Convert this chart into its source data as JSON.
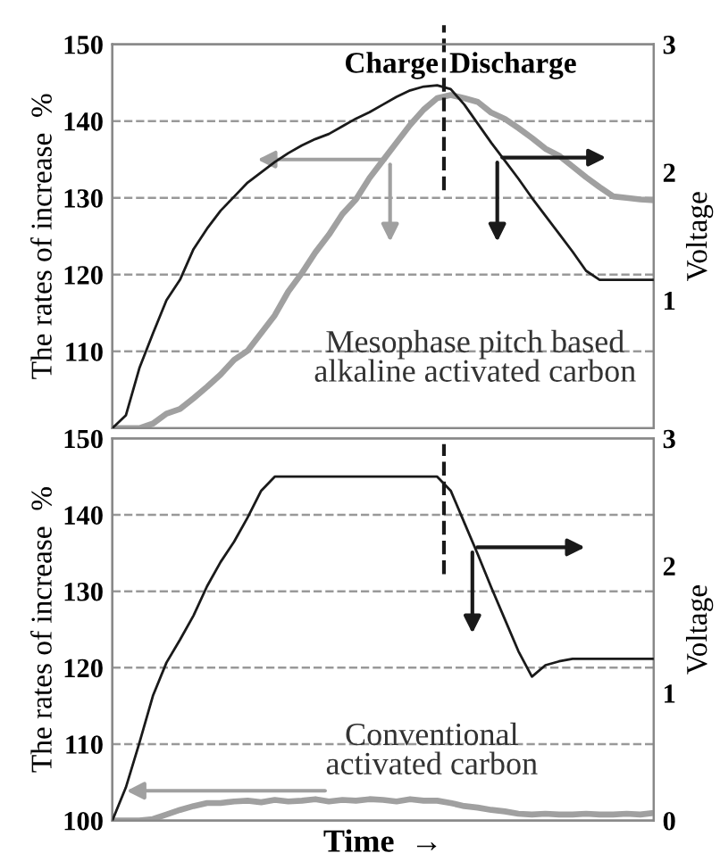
{
  "chart_data": [
    {
      "type": "line",
      "categories": [
        null,
        null,
        null,
        null,
        null,
        null,
        null,
        null,
        null,
        null,
        null,
        null,
        null,
        null,
        null,
        null,
        null,
        null,
        null,
        null,
        null,
        null,
        null,
        null,
        null,
        null,
        null,
        null,
        null,
        null,
        null,
        null,
        null,
        null,
        null,
        null,
        null,
        null,
        null,
        null,
        null
      ],
      "ylabel": "The rates of increase  %",
      "y2label": "Voltage",
      "ylim": [
        100,
        150
      ],
      "yticks": [
        {
          "value": 100,
          "label": null
        },
        110,
        120,
        130,
        140,
        150
      ],
      "y2lim": [
        0,
        3
      ],
      "y2ticks": [
        {
          "value": 0,
          "label": null
        },
        1,
        2,
        3
      ],
      "grid": "y",
      "line_style": "solid",
      "annotations": [
        "Charge",
        "Discharge",
        "Mesophase pitch based\nalkaline activated carbon"
      ],
      "series": [
        {
          "color": "#a0a0a0",
          "values": [
            100,
            100,
            100,
            100.6,
            101.9,
            102.5,
            103.9,
            105.4,
            107.0,
            108.9,
            110.1,
            112.4,
            114.7,
            117.8,
            120.2,
            122.9,
            125.2,
            127.9,
            129.8,
            132.6,
            134.9,
            137.2,
            139.5,
            141.5,
            143.0,
            143.4,
            143.0,
            142.5,
            141.1,
            140.3,
            139.1,
            137.8,
            136.4,
            135.5,
            134.1,
            132.7,
            131.4,
            130.2,
            130.0,
            129.8,
            129.7
          ]
        },
        {
          "color": "#1a1a1a",
          "axis": "y2",
          "values": [
            0,
            0.1,
            0.47,
            0.74,
            1.0,
            1.16,
            1.4,
            1.56,
            1.7,
            1.81,
            1.92,
            2.0,
            2.08,
            2.15,
            2.21,
            2.26,
            2.3,
            2.36,
            2.42,
            2.47,
            2.53,
            2.59,
            2.64,
            2.67,
            2.68,
            2.65,
            2.53,
            2.38,
            2.23,
            2.09,
            1.95,
            1.8,
            1.66,
            1.52,
            1.38,
            1.23,
            1.16,
            1.16,
            1.16,
            1.16,
            1.16
          ]
        }
      ]
    },
    {
      "type": "line",
      "categories": [
        null,
        null,
        null,
        null,
        null,
        null,
        null,
        null,
        null,
        null,
        null,
        null,
        null,
        null,
        null,
        null,
        null,
        null,
        null,
        null,
        null,
        null,
        null,
        null,
        null,
        null,
        null,
        null,
        null,
        null,
        null,
        null,
        null,
        null,
        null,
        null,
        null,
        null,
        null,
        null,
        null
      ],
      "xlabel": "Time  →",
      "ylabel": "The rates of increase  %",
      "y2label": "Voltage",
      "ylim": [
        100,
        150
      ],
      "yticks": [
        100,
        110,
        120,
        130,
        140,
        150
      ],
      "y2lim": [
        0,
        3
      ],
      "y2ticks": [
        0,
        1,
        2,
        3
      ],
      "grid": "y",
      "line_style": "solid",
      "annotations": [
        "Conventional\nactivated carbon"
      ],
      "series": [
        {
          "color": "#a0a0a0",
          "values": [
            100,
            100,
            100,
            100.2,
            100.8,
            101.4,
            101.9,
            102.3,
            102.3,
            102.5,
            102.6,
            102.4,
            102.7,
            102.5,
            102.6,
            102.8,
            102.5,
            102.7,
            102.6,
            102.8,
            102.7,
            102.5,
            102.8,
            102.6,
            102.6,
            102.3,
            101.9,
            101.7,
            101.4,
            101.2,
            100.9,
            100.8,
            100.9,
            100.8,
            100.8,
            100.9,
            100.8,
            100.8,
            100.9,
            100.8,
            101.0
          ]
        },
        {
          "color": "#1a1a1a",
          "axis": "y2",
          "values": [
            0,
            0.26,
            0.61,
            0.98,
            1.24,
            1.42,
            1.61,
            1.84,
            2.03,
            2.19,
            2.38,
            2.59,
            2.7,
            2.7,
            2.7,
            2.7,
            2.7,
            2.7,
            2.7,
            2.7,
            2.7,
            2.7,
            2.7,
            2.7,
            2.7,
            2.59,
            2.34,
            2.09,
            1.83,
            1.58,
            1.33,
            1.13,
            1.22,
            1.25,
            1.27,
            1.27,
            1.27,
            1.27,
            1.27,
            1.27,
            1.27
          ]
        }
      ]
    }
  ]
}
